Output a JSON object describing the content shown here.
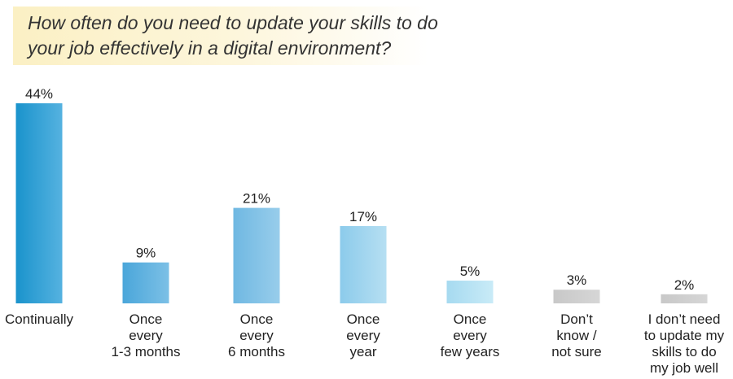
{
  "chart_data": {
    "type": "bar",
    "title": "How often do you need to update your skills to do\nyour job effectively in a digital environment?",
    "xlabel": "",
    "ylabel": "",
    "ylim": [
      0,
      44
    ],
    "grid": false,
    "legend": "none",
    "categories": [
      "Continually",
      "Once\nevery\n1-3 months",
      "Once\nevery\n6 months",
      "Once\nevery\nyear",
      "Once\nevery\nfew years",
      "Don’t\nknow /\nnot sure",
      "I don’t need\nto update my\nskills to do\nmy job well"
    ],
    "values": [
      44,
      9,
      21,
      17,
      5,
      3,
      2
    ],
    "value_labels": [
      "44%",
      "9%",
      "21%",
      "17%",
      "5%",
      "3%",
      "2%"
    ],
    "colors": {
      "bar_gradients": [
        [
          "#1a93cc",
          "#55b2e0"
        ],
        [
          "#4aa6da",
          "#7cc0e6"
        ],
        [
          "#6fb8e2",
          "#98cdeb"
        ],
        [
          "#8ccbeb",
          "#b6dff2"
        ],
        [
          "#a6daf0",
          "#c9ebf7"
        ],
        [
          "#c8c8c8",
          "#d6d6d6"
        ],
        [
          "#c8c8c8",
          "#d6d6d6"
        ]
      ]
    }
  }
}
